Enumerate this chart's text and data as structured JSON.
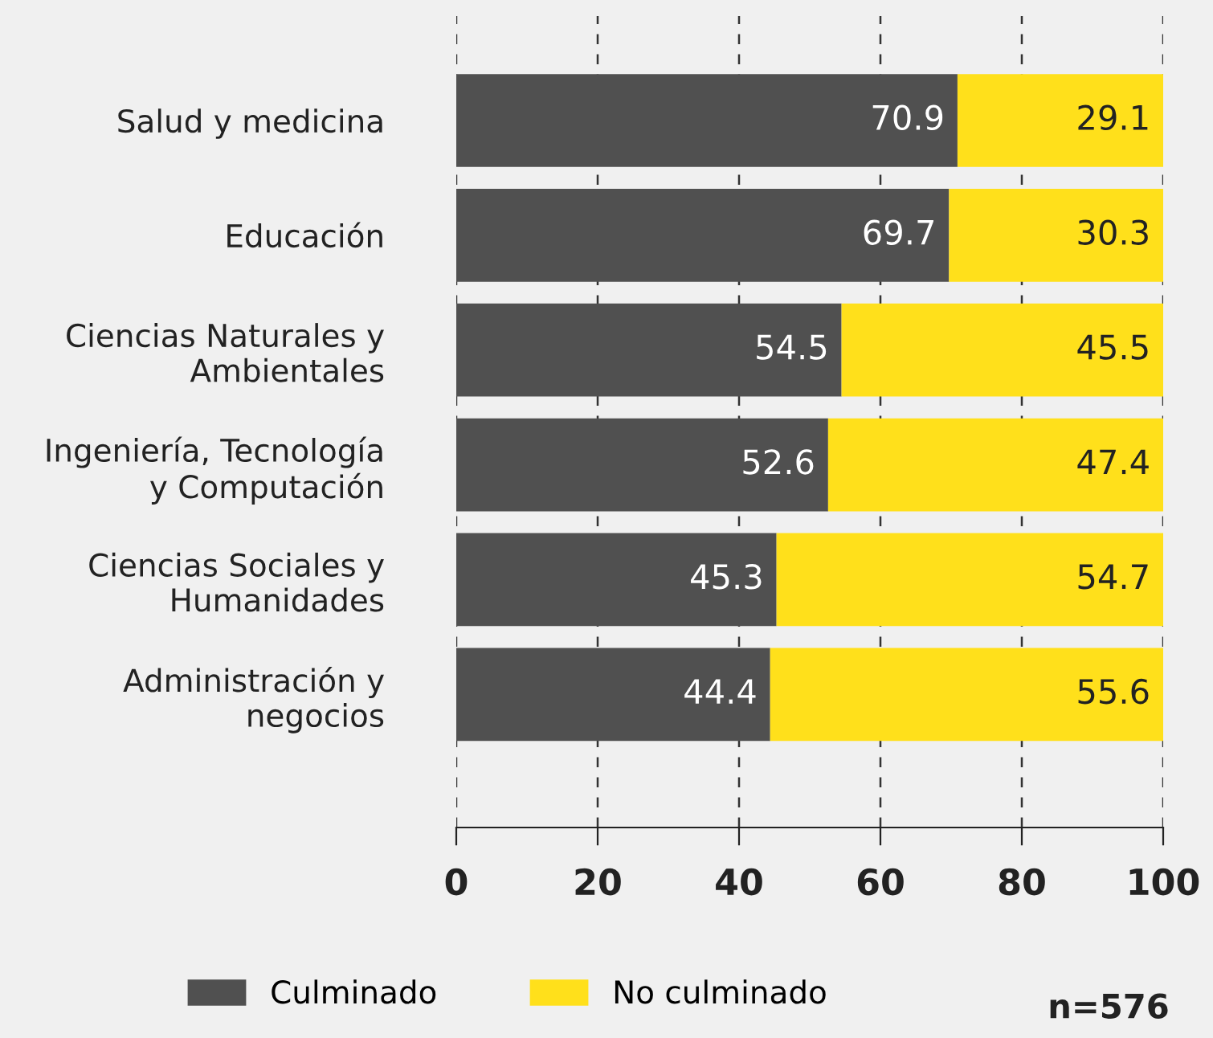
{
  "chart_data": {
    "type": "bar",
    "orientation": "horizontal",
    "stacked": true,
    "categories": [
      "Salud y medicina",
      "Educación",
      "Ciencias Naturales y\nAmbientales",
      "Ingeniería, Tecnología\ny Computación",
      "Ciencias Sociales y\nHumanidades",
      "Administración y\nnegocios"
    ],
    "series": [
      {
        "name": "Culminado",
        "color": "#505050",
        "values": [
          70.9,
          69.7,
          54.5,
          52.6,
          45.3,
          44.4
        ]
      },
      {
        "name": "No culminado",
        "color": "#ffe01b",
        "values": [
          29.1,
          30.3,
          45.5,
          47.4,
          54.7,
          55.6
        ]
      }
    ],
    "xlim": [
      0,
      100
    ],
    "xticks": [
      0,
      20,
      40,
      60,
      80,
      100
    ],
    "grid": "x",
    "legend": "bottom",
    "data_labels": true,
    "annotations": [
      "n=576"
    ]
  }
}
